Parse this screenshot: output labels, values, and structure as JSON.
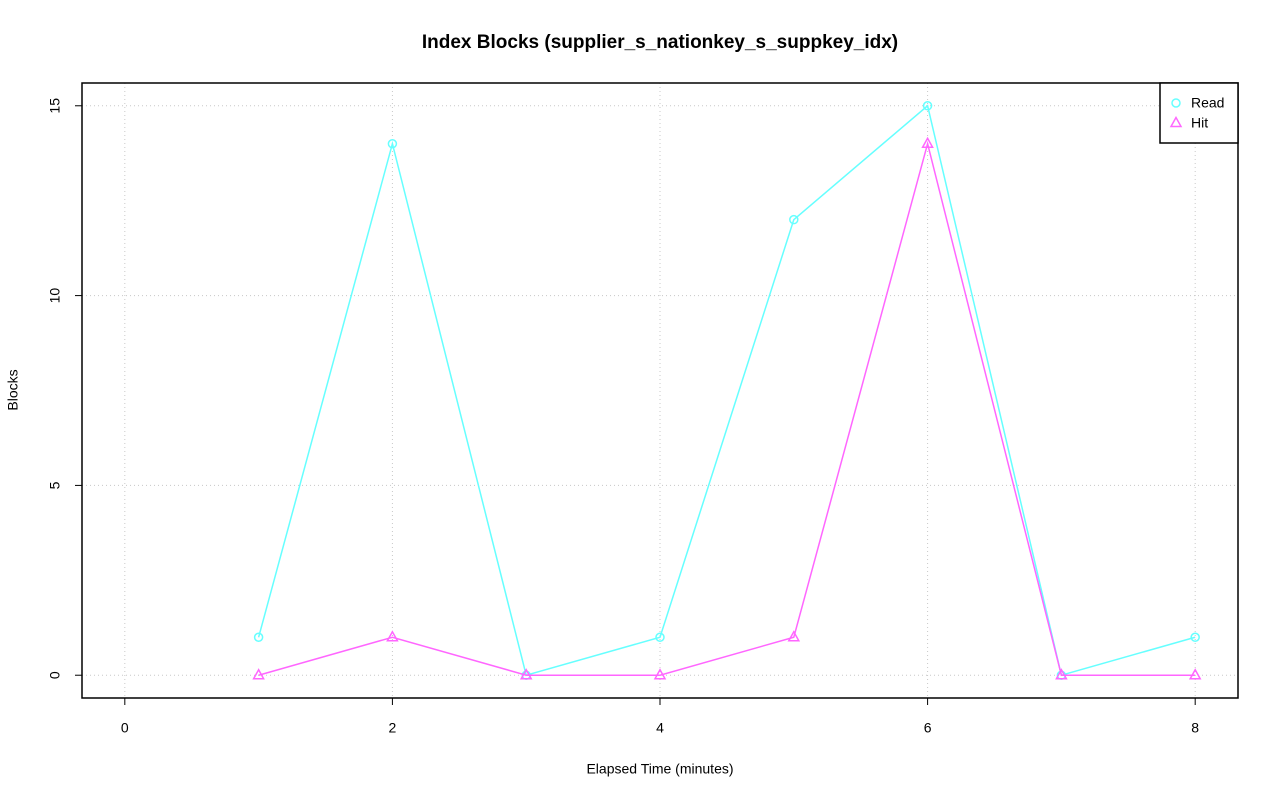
{
  "chart_data": {
    "type": "line",
    "title": "Index Blocks (supplier_s_nationkey_s_suppkey_idx)",
    "x_label": "Elapsed Time (minutes)",
    "y_label": "Blocks",
    "x": [
      1,
      2,
      3,
      4,
      5,
      6,
      7,
      8
    ],
    "series": [
      {
        "name": "Read",
        "color": "#66ffff",
        "marker": "circle",
        "values": [
          1,
          14,
          0,
          1,
          12,
          15,
          0,
          1
        ]
      },
      {
        "name": "Hit",
        "color": "#ff66ff",
        "marker": "triangle",
        "values": [
          0,
          1,
          0,
          0,
          1,
          14,
          0,
          0
        ]
      }
    ],
    "xlim": [
      -0.32,
      8.32
    ],
    "xticks": [
      0,
      2,
      4,
      6,
      8
    ],
    "ylim": [
      -0.6,
      15.6
    ],
    "yticks": [
      0,
      5,
      10,
      15
    ],
    "grid": true,
    "legend": "top-right"
  }
}
